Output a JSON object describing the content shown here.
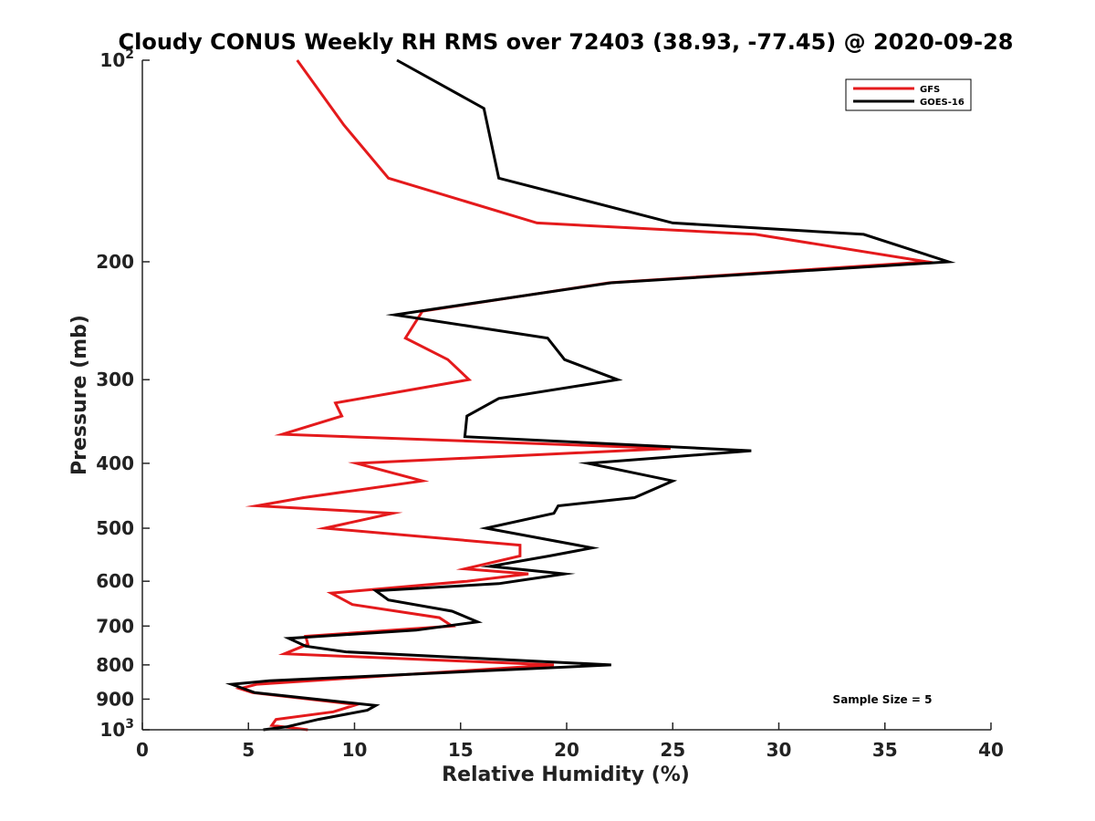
{
  "chart_data": {
    "type": "line",
    "title": "Cloudy CONUS Weekly RH RMS over 72403 (38.93, -77.45) @ 2020-09-28",
    "xlabel": "Relative Humidity (%)",
    "ylabel": "Pressure (mb)",
    "xlim": [
      0,
      40
    ],
    "ylim": [
      100,
      1000
    ],
    "y_scale": "log",
    "y_reversed": true,
    "x_ticks": [
      "0",
      "5",
      "10",
      "15",
      "20",
      "25",
      "30",
      "35",
      "40"
    ],
    "y_ticks": [
      {
        "value": 100,
        "base": "10",
        "exp": "2"
      },
      {
        "value": 200,
        "label": "200"
      },
      {
        "value": 300,
        "label": "300"
      },
      {
        "value": 400,
        "label": "400"
      },
      {
        "value": 500,
        "label": "500"
      },
      {
        "value": 600,
        "label": "600"
      },
      {
        "value": 700,
        "label": "700"
      },
      {
        "value": 800,
        "label": "800"
      },
      {
        "value": 900,
        "label": "900"
      },
      {
        "value": 1000,
        "base": "10",
        "exp": "3"
      }
    ],
    "legend_position": "top-right",
    "grid": false,
    "annotation": "Sample Size = 5",
    "series": [
      {
        "name": "GFS",
        "color": "#e41a1c",
        "points": [
          [
            7.3,
            100
          ],
          [
            9.5,
            125
          ],
          [
            11.6,
            150
          ],
          [
            18.6,
            175
          ],
          [
            28.9,
            182
          ],
          [
            37.0,
            200
          ],
          [
            22.0,
            215
          ],
          [
            13.2,
            237
          ],
          [
            12.4,
            260
          ],
          [
            14.4,
            280
          ],
          [
            15.4,
            300
          ],
          [
            9.1,
            325
          ],
          [
            9.4,
            340
          ],
          [
            6.6,
            362
          ],
          [
            24.9,
            380
          ],
          [
            10.1,
            400
          ],
          [
            13.2,
            425
          ],
          [
            7.6,
            450
          ],
          [
            5.4,
            463
          ],
          [
            11.8,
            475
          ],
          [
            8.6,
            500
          ],
          [
            17.8,
            530
          ],
          [
            17.8,
            550
          ],
          [
            15.2,
            575
          ],
          [
            18.2,
            585
          ],
          [
            15.3,
            600
          ],
          [
            8.9,
            625
          ],
          [
            9.9,
            650
          ],
          [
            14.0,
            680
          ],
          [
            14.6,
            700
          ],
          [
            7.7,
            725
          ],
          [
            7.8,
            745
          ],
          [
            6.7,
            770
          ],
          [
            19.4,
            800
          ],
          [
            5.4,
            855
          ],
          [
            4.6,
            868
          ],
          [
            5.2,
            880
          ],
          [
            10.1,
            917
          ],
          [
            9.0,
            940
          ],
          [
            6.3,
            965
          ],
          [
            6.1,
            985
          ],
          [
            7.8,
            1000
          ]
        ]
      },
      {
        "name": "GOES-16",
        "color": "#000000",
        "points": [
          [
            12.0,
            100
          ],
          [
            16.1,
            118
          ],
          [
            16.8,
            150
          ],
          [
            25.0,
            175
          ],
          [
            34.0,
            182
          ],
          [
            38.0,
            200
          ],
          [
            22.1,
            215
          ],
          [
            11.9,
            240
          ],
          [
            19.1,
            260
          ],
          [
            19.9,
            280
          ],
          [
            22.4,
            300
          ],
          [
            16.8,
            320
          ],
          [
            15.3,
            340
          ],
          [
            15.2,
            365
          ],
          [
            28.7,
            383
          ],
          [
            21.0,
            400
          ],
          [
            25.0,
            425
          ],
          [
            23.2,
            450
          ],
          [
            19.6,
            463
          ],
          [
            19.4,
            475
          ],
          [
            16.2,
            500
          ],
          [
            21.2,
            535
          ],
          [
            19.2,
            550
          ],
          [
            16.4,
            570
          ],
          [
            19.9,
            585
          ],
          [
            16.8,
            605
          ],
          [
            11.0,
            620
          ],
          [
            11.6,
            640
          ],
          [
            14.6,
            665
          ],
          [
            15.8,
            690
          ],
          [
            12.9,
            710
          ],
          [
            6.9,
            730
          ],
          [
            7.7,
            750
          ],
          [
            9.6,
            765
          ],
          [
            22.1,
            800
          ],
          [
            6.0,
            845
          ],
          [
            4.2,
            855
          ],
          [
            5.3,
            880
          ],
          [
            11.0,
            920
          ],
          [
            10.6,
            935
          ],
          [
            8.3,
            965
          ],
          [
            6.8,
            990
          ],
          [
            5.7,
            1000
          ]
        ]
      }
    ]
  }
}
